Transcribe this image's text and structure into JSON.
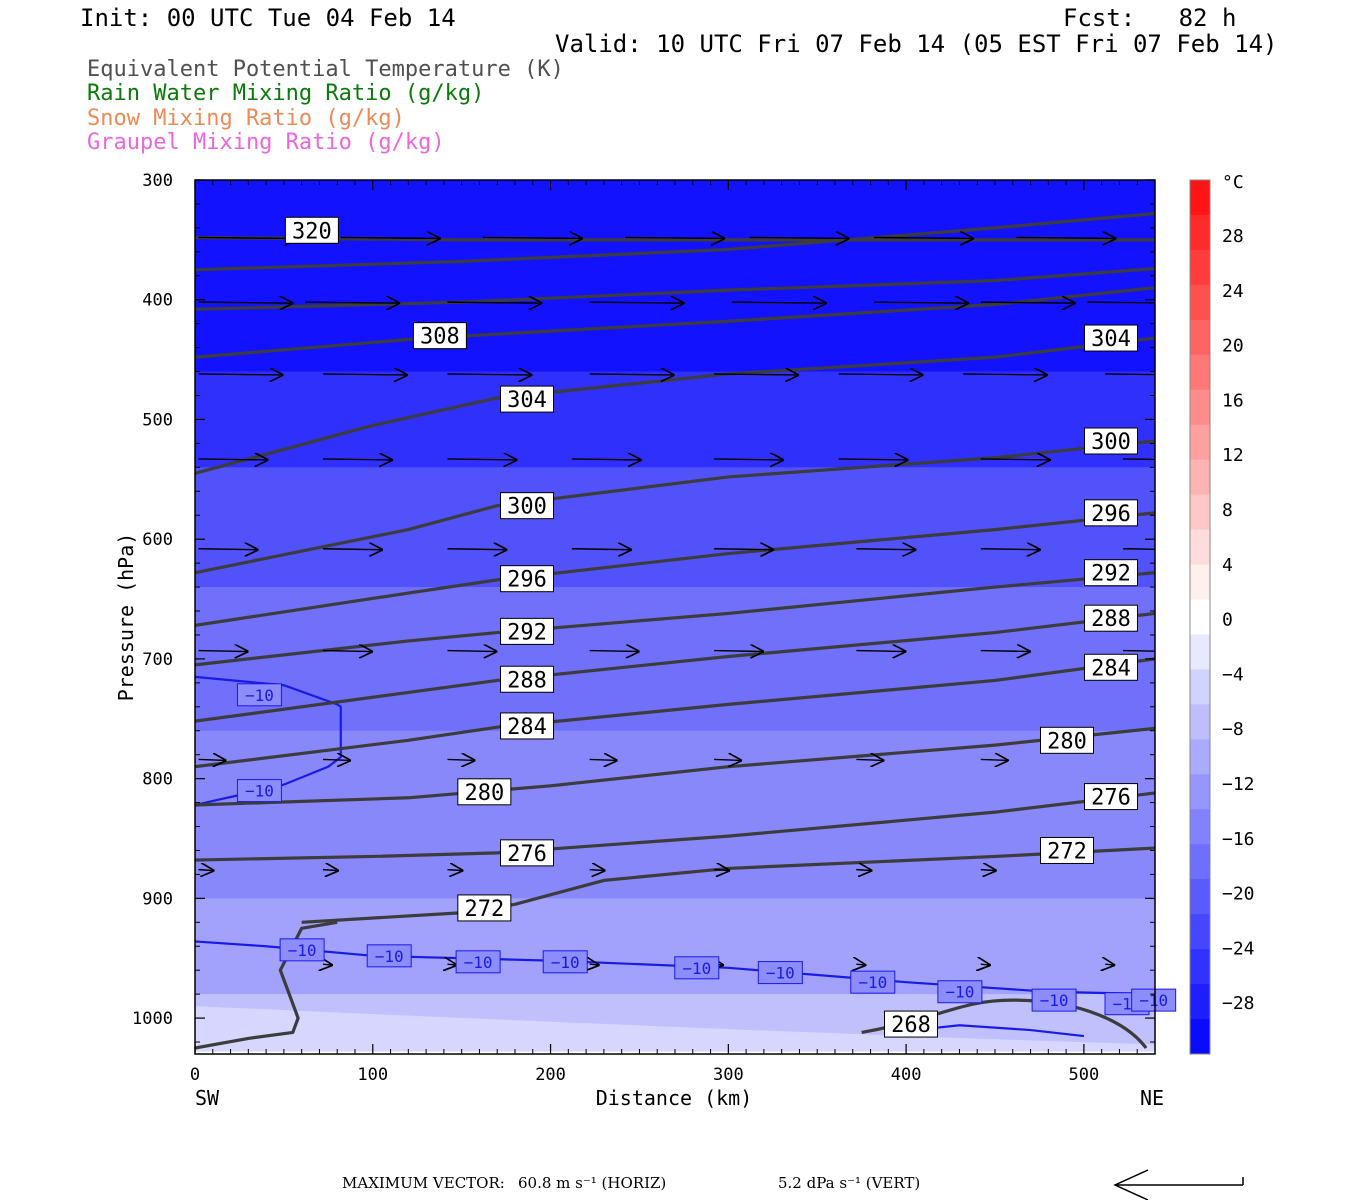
{
  "header": {
    "init": "Init: 00 UTC Tue 04 Feb 14",
    "fcst": "Fcst:   82 h",
    "valid": "Valid: 10 UTC Fri 07 Feb 14 (05 EST Fri 07 Feb 14)"
  },
  "legend": [
    {
      "text": "Equivalent Potential Temperature (K)",
      "color": "#505050"
    },
    {
      "text": "Rain Water Mixing Ratio (g/kg)",
      "color": "#0a7a0a"
    },
    {
      "text": "Snow Mixing Ratio (g/kg)",
      "color": "#ee8a55"
    },
    {
      "text": "Graupel Mixing Ratio (g/kg)",
      "color": "#ee66dd"
    }
  ],
  "footer": {
    "label": "MAXIMUM VECTOR:",
    "horiz": "60.8 m s⁻¹ (HORIZ)",
    "vert": "5.2 dPa s⁻¹ (VERT)"
  },
  "chart_data": {
    "type": "cross-section",
    "xlabel": "Distance (km)",
    "ylabel": "Pressure (hPa)",
    "xlim": [
      0,
      540
    ],
    "ylim": [
      1030,
      300
    ],
    "x_ticks": [
      "0",
      "100",
      "200",
      "300",
      "400",
      "500"
    ],
    "y_ticks": [
      "300",
      "400",
      "500",
      "600",
      "700",
      "800",
      "900",
      "1000"
    ],
    "endpoint_left": "SW",
    "endpoint_right": "NE",
    "colorbar": {
      "unit": "°C",
      "labels": [
        "28",
        "24",
        "20",
        "16",
        "12",
        "8",
        "4",
        "0",
        "−4",
        "−8",
        "−12",
        "−16",
        "−20",
        "−24",
        "−28"
      ],
      "colors": [
        "#ff1515",
        "#ff2a2a",
        "#ff3c3c",
        "#ff5050",
        "#ff6464",
        "#ff7878",
        "#ff8c8c",
        "#ffa0a0",
        "#ffb4b4",
        "#ffc8c8",
        "#ffdcdc",
        "#fff0f0",
        "#ffffff",
        "#e8e8ff",
        "#d2d2ff",
        "#bebeff",
        "#aaaaff",
        "#9696ff",
        "#8282ff",
        "#6e6eff",
        "#5a5aff",
        "#4646ff",
        "#3232ff",
        "#1e1eff",
        "#0a0aff"
      ]
    },
    "temperature_fill": [
      {
        "min_c": -30,
        "max_c": -28,
        "p_top": 300,
        "p_bot": 460,
        "color": "#1212ff"
      },
      {
        "min_c": -28,
        "max_c": -24,
        "p_top": 460,
        "p_bot": 540,
        "color": "#3030fc"
      },
      {
        "min_c": -24,
        "max_c": -20,
        "p_top": 540,
        "p_bot": 640,
        "color": "#5252fb"
      },
      {
        "min_c": -20,
        "max_c": -16,
        "p_top": 640,
        "p_bot": 760,
        "color": "#7070fa"
      },
      {
        "min_c": -16,
        "max_c": -12,
        "p_top": 760,
        "p_bot": 900,
        "color": "#8888fa"
      },
      {
        "min_c": -12,
        "max_c": -8,
        "p_top": 900,
        "p_bot": 980,
        "color": "#a2a2fc"
      },
      {
        "min_c": -8,
        "max_c": -4,
        "p_top": 980,
        "p_bot": 1030,
        "color": "#c0c0fd"
      }
    ],
    "theta_e_series": [
      {
        "label": "320",
        "points": [
          [
            0,
            348
          ],
          [
            150,
            350
          ],
          [
            300,
            350
          ],
          [
            450,
            350
          ],
          [
            540,
            350
          ]
        ],
        "label_at": [
          50,
          342
        ]
      },
      {
        "label": "",
        "points": [
          [
            0,
            375
          ],
          [
            150,
            368
          ],
          [
            300,
            358
          ],
          [
            450,
            340
          ],
          [
            540,
            328
          ]
        ]
      },
      {
        "label": "",
        "points": [
          [
            0,
            408
          ],
          [
            150,
            402
          ],
          [
            300,
            392
          ],
          [
            450,
            384
          ],
          [
            540,
            374
          ]
        ]
      },
      {
        "label": "308",
        "points": [
          [
            0,
            448
          ],
          [
            130,
            432
          ],
          [
            300,
            418
          ],
          [
            450,
            404
          ],
          [
            540,
            390
          ]
        ],
        "label_at": [
          122,
          430
        ]
      },
      {
        "label": "304",
        "points": [
          [
            0,
            545
          ],
          [
            100,
            505
          ],
          [
            170,
            482
          ],
          [
            300,
            462
          ],
          [
            450,
            448
          ],
          [
            540,
            432
          ]
        ],
        "label_at": [
          171,
          483
        ]
      },
      {
        "label": "300",
        "points": [
          [
            0,
            628
          ],
          [
            120,
            592
          ],
          [
            170,
            572
          ],
          [
            300,
            548
          ],
          [
            450,
            532
          ],
          [
            540,
            518
          ]
        ],
        "label_at": [
          171,
          572
        ]
      },
      {
        "label": "296",
        "points": [
          [
            0,
            672
          ],
          [
            120,
            645
          ],
          [
            170,
            634
          ],
          [
            300,
            612
          ],
          [
            450,
            592
          ],
          [
            540,
            578
          ]
        ],
        "label_at": [
          171,
          633
        ]
      },
      {
        "label": "292",
        "points": [
          [
            0,
            705
          ],
          [
            120,
            685
          ],
          [
            170,
            678
          ],
          [
            300,
            662
          ],
          [
            450,
            640
          ],
          [
            540,
            628
          ]
        ],
        "label_at": [
          171,
          677
        ]
      },
      {
        "label": "288",
        "points": [
          [
            0,
            752
          ],
          [
            120,
            728
          ],
          [
            170,
            718
          ],
          [
            300,
            698
          ],
          [
            450,
            678
          ],
          [
            540,
            662
          ]
        ],
        "label_at": [
          171,
          717
        ]
      },
      {
        "label": "284",
        "points": [
          [
            0,
            790
          ],
          [
            120,
            768
          ],
          [
            170,
            757
          ],
          [
            300,
            738
          ],
          [
            450,
            718
          ],
          [
            540,
            700
          ]
        ],
        "label_at": [
          171,
          756
        ]
      },
      {
        "label": "280",
        "points": [
          [
            0,
            822
          ],
          [
            120,
            816
          ],
          [
            200,
            806
          ],
          [
            300,
            790
          ],
          [
            450,
            772
          ],
          [
            540,
            758
          ]
        ],
        "label_at": [
          147,
          811
        ]
      },
      {
        "label": "276",
        "points": [
          [
            0,
            868
          ],
          [
            100,
            865
          ],
          [
            170,
            862
          ],
          [
            300,
            848
          ],
          [
            450,
            828
          ],
          [
            540,
            812
          ]
        ],
        "label_at": [
          171,
          862
        ]
      },
      {
        "label": "272",
        "points": [
          [
            60,
            920
          ],
          [
            150,
            912
          ],
          [
            180,
            905
          ],
          [
            230,
            885
          ],
          [
            300,
            875
          ],
          [
            450,
            865
          ],
          [
            540,
            858
          ]
        ],
        "label_at": [
          147,
          908
        ]
      },
      {
        "label": "268",
        "points": [
          [
            0,
            1025
          ],
          [
            30,
            1017
          ],
          [
            55,
            1012
          ],
          [
            58,
            1000
          ],
          [
            48,
            960
          ],
          [
            60,
            925
          ],
          [
            80,
            920
          ]
        ],
        "label_at": [
          387,
          1005
        ]
      }
    ],
    "theta_e_right_labels": [
      "304",
      "300",
      "296",
      "292",
      "288",
      "284",
      "280",
      "276",
      "272"
    ],
    "isotherm_minus10": {
      "value": "−10",
      "labels": [
        "−10",
        "−10",
        "−10",
        "−10",
        "−10",
        "−10",
        "−10",
        "−10",
        "−10",
        "−10",
        "−10",
        "−10",
        "−10"
      ]
    }
  }
}
